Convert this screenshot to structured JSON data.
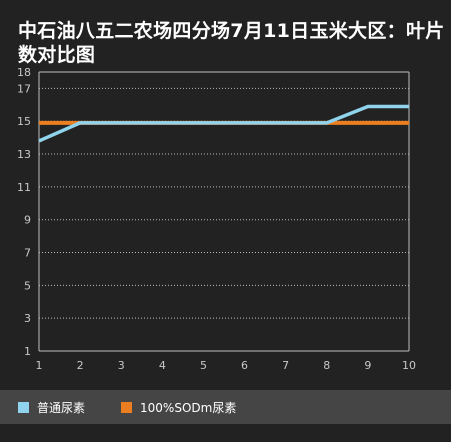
{
  "chart_data": {
    "type": "line",
    "title": "中石油八五二农场四分场7月11日玉米大区：叶片数对比图",
    "xlabel": "",
    "ylabel": "",
    "x": [
      1,
      2,
      3,
      4,
      5,
      6,
      7,
      8,
      9,
      10
    ],
    "xlim": [
      1,
      10
    ],
    "ylim": [
      1,
      18
    ],
    "yticks": [
      1,
      3,
      5,
      7,
      9,
      11,
      13,
      15,
      17,
      18
    ],
    "grid": "horizontal dotted",
    "legend_position": "bottom",
    "series": [
      {
        "name": "普通尿素",
        "color": "#8fd3ec",
        "values": [
          13.8,
          14.9,
          14.9,
          14.9,
          14.9,
          14.9,
          14.9,
          14.9,
          15.9,
          15.9
        ]
      },
      {
        "name": "100%SODm尿素",
        "color": "#ea7e21",
        "values": [
          14.9,
          14.9,
          14.9,
          14.9,
          14.9,
          14.9,
          14.9,
          14.9,
          14.9,
          14.9
        ]
      }
    ]
  }
}
